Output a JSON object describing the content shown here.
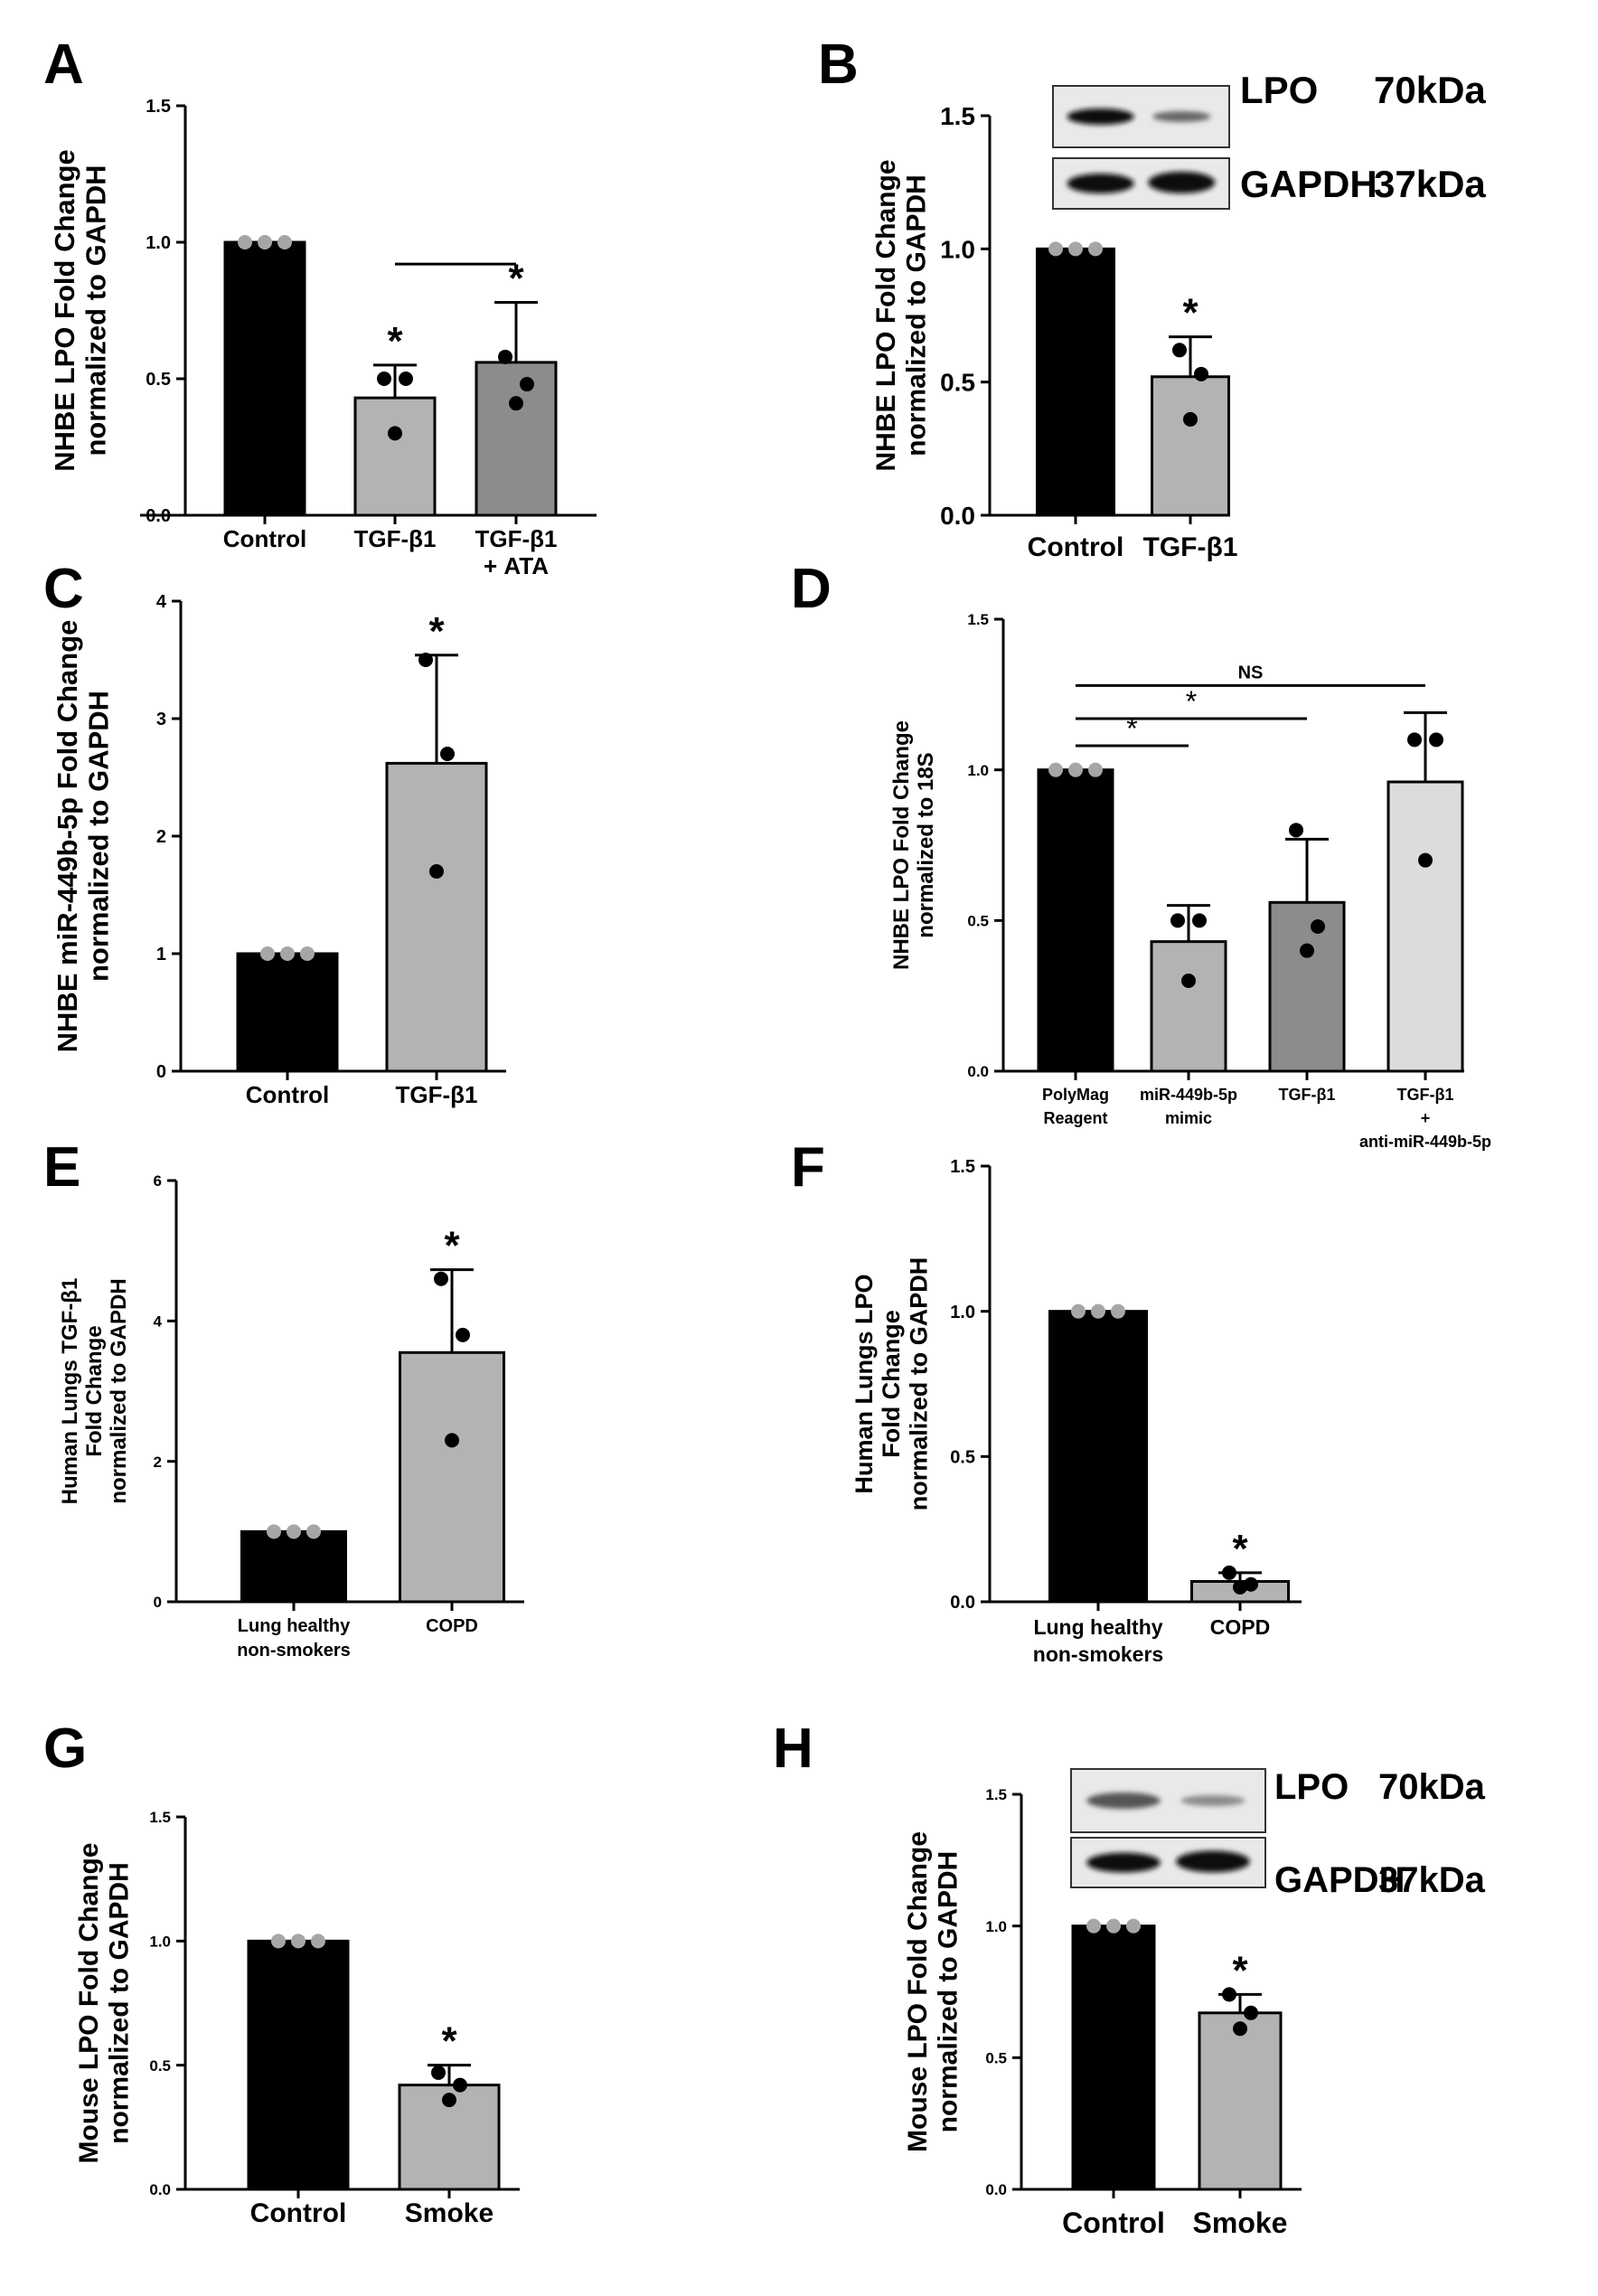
{
  "figure": {
    "background": "#ffffff",
    "colors": {
      "black_bar": "#000000",
      "gray_bar": "#b3b3b3",
      "dark_gray_bar": "#8c8c8c",
      "light_gray_bar": "#dcdcdc",
      "control_point": "#a6a6a6",
      "point": "#000000"
    }
  },
  "chart_data": [
    {
      "panel": "A",
      "type": "bar",
      "ylabel": "NHBE LPO Fold Change\nnormalized to GAPDH",
      "ylim": [
        0,
        1.5
      ],
      "yticks": [
        "0.0",
        "0.5",
        "1.0",
        "1.5"
      ],
      "categories": [
        "Control",
        "TGF-β1",
        "TGF-β1\n+ ATA"
      ],
      "values": [
        1.0,
        0.43,
        0.56
      ],
      "errors": [
        0,
        0.12,
        0.22
      ],
      "points": [
        [
          1.0,
          1.0,
          1.0
        ],
        [
          0.5,
          0.5,
          0.3
        ],
        [
          0.58,
          0.48,
          0.41
        ]
      ],
      "colors": [
        "#000000",
        "#b3b3b3",
        "#8c8c8c"
      ],
      "significance": [
        "",
        "*",
        "*"
      ],
      "comparisons": [
        {
          "from": 1,
          "to": 2,
          "y": 0.92,
          "label": ""
        }
      ],
      "blot": null
    },
    {
      "panel": "B",
      "type": "bar",
      "ylabel": "NHBE LPO Fold Change\nnormalized to GAPDH",
      "ylim": [
        0,
        1.5
      ],
      "yticks": [
        "0.0",
        "0.5",
        "1.0",
        "1.5"
      ],
      "categories": [
        "Control",
        "TGF-β1"
      ],
      "values": [
        1.0,
        0.52
      ],
      "errors": [
        0,
        0.15
      ],
      "points": [
        [
          1.0,
          1.0,
          1.0
        ],
        [
          0.62,
          0.53,
          0.36
        ]
      ],
      "colors": [
        "#000000",
        "#b3b3b3"
      ],
      "significance": [
        "",
        "*"
      ],
      "comparisons": [],
      "blot": {
        "rows": [
          {
            "label": "LPO",
            "kda": "70kDa"
          },
          {
            "label": "GAPDH",
            "kda": "37kDa"
          }
        ]
      }
    },
    {
      "panel": "C",
      "type": "bar",
      "ylabel": "NHBE miR-449b-5p Fold Change\nnormalized to GAPDH",
      "ylim": [
        0,
        4
      ],
      "yticks": [
        "0",
        "1",
        "2",
        "3",
        "4"
      ],
      "categories": [
        "Control",
        "TGF-β1"
      ],
      "values": [
        1.0,
        2.62
      ],
      "errors": [
        0,
        0.92
      ],
      "points": [
        [
          1.0,
          1.0,
          1.0
        ],
        [
          3.5,
          2.7,
          1.7
        ]
      ],
      "colors": [
        "#000000",
        "#b3b3b3"
      ],
      "significance": [
        "",
        "*"
      ],
      "comparisons": [],
      "blot": null
    },
    {
      "panel": "D",
      "type": "bar",
      "ylabel": "NHBE LPO Fold Change\nnormalized to 18S",
      "ylim": [
        0,
        1.5
      ],
      "yticks": [
        "0.0",
        "0.5",
        "1.0",
        "1.5"
      ],
      "categories": [
        "PolyMag\nReagent",
        "miR-449b-5p\nmimic",
        "TGF-β1",
        "TGF-β1\n+\nanti-miR-449b-5p"
      ],
      "values": [
        1.0,
        0.43,
        0.56,
        0.96
      ],
      "errors": [
        0,
        0.12,
        0.21,
        0.23
      ],
      "points": [
        [
          1.0,
          1.0,
          1.0
        ],
        [
          0.5,
          0.5,
          0.3
        ],
        [
          0.8,
          0.48,
          0.4
        ],
        [
          1.1,
          1.1,
          0.7
        ]
      ],
      "colors": [
        "#000000",
        "#b3b3b3",
        "#8c8c8c",
        "#dcdcdc"
      ],
      "significance": [
        "",
        "",
        "",
        ""
      ],
      "comparisons": [
        {
          "from": 0,
          "to": 1,
          "y": 1.08,
          "label": "*"
        },
        {
          "from": 0,
          "to": 2,
          "y": 1.17,
          "label": "*"
        },
        {
          "from": 0,
          "to": 3,
          "y": 1.28,
          "label": "NS"
        }
      ],
      "blot": null
    },
    {
      "panel": "E",
      "type": "bar",
      "ylabel": "Human Lungs TGF-β1\nFold Change\nnormalized to GAPDH",
      "ylim": [
        0,
        6
      ],
      "yticks": [
        "0",
        "2",
        "4",
        "6"
      ],
      "categories": [
        "Lung healthy\nnon-smokers",
        "COPD"
      ],
      "values": [
        1.0,
        3.55
      ],
      "errors": [
        0,
        1.18
      ],
      "points": [
        [
          1.0,
          1.0,
          1.0
        ],
        [
          4.6,
          3.8,
          2.3
        ]
      ],
      "colors": [
        "#000000",
        "#b3b3b3"
      ],
      "significance": [
        "",
        "*"
      ],
      "comparisons": [],
      "blot": null
    },
    {
      "panel": "F",
      "type": "bar",
      "ylabel": "Human Lungs LPO\nFold Change\nnormalized to GAPDH",
      "ylim": [
        0,
        1.5
      ],
      "yticks": [
        "0.0",
        "0.5",
        "1.0",
        "1.5"
      ],
      "categories": [
        "Lung healthy\nnon-smokers",
        "COPD"
      ],
      "values": [
        1.0,
        0.07
      ],
      "errors": [
        0,
        0.03
      ],
      "points": [
        [
          1.0,
          1.0,
          1.0
        ],
        [
          0.1,
          0.06,
          0.05
        ]
      ],
      "colors": [
        "#000000",
        "#b3b3b3"
      ],
      "significance": [
        "",
        "*"
      ],
      "comparisons": [],
      "blot": null
    },
    {
      "panel": "G",
      "type": "bar",
      "ylabel": "Mouse LPO Fold Change\nnormalized to GAPDH",
      "ylim": [
        0,
        1.5
      ],
      "yticks": [
        "0.0",
        "0.5",
        "1.0",
        "1.5"
      ],
      "categories": [
        "Control",
        "Smoke"
      ],
      "values": [
        1.0,
        0.42
      ],
      "errors": [
        0,
        0.08
      ],
      "points": [
        [
          1.0,
          1.0,
          1.0
        ],
        [
          0.47,
          0.42,
          0.36
        ]
      ],
      "colors": [
        "#000000",
        "#b3b3b3"
      ],
      "significance": [
        "",
        "*"
      ],
      "comparisons": [],
      "blot": null
    },
    {
      "panel": "H",
      "type": "bar",
      "ylabel": "Mouse LPO Fold Change\nnormalized to GAPDH",
      "ylim": [
        0,
        1.5
      ],
      "yticks": [
        "0.0",
        "0.5",
        "1.0",
        "1.5"
      ],
      "categories": [
        "Control",
        "Smoke"
      ],
      "values": [
        1.0,
        0.67
      ],
      "errors": [
        0,
        0.07
      ],
      "points": [
        [
          1.0,
          1.0,
          1.0
        ],
        [
          0.74,
          0.67,
          0.61
        ]
      ],
      "colors": [
        "#000000",
        "#b3b3b3"
      ],
      "significance": [
        "",
        "*"
      ],
      "comparisons": [],
      "blot": {
        "rows": [
          {
            "label": "LPO",
            "kda": "70kDa"
          },
          {
            "label": "GAPDH",
            "kda": "37kDa"
          }
        ]
      }
    }
  ]
}
